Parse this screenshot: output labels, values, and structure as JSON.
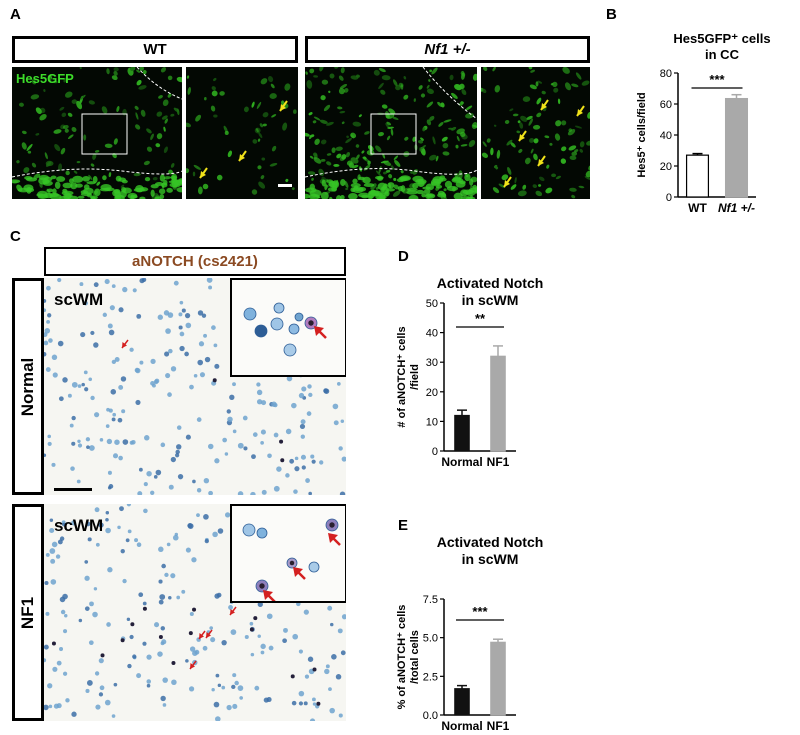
{
  "panels": {
    "a": {
      "letter": "A",
      "label_wt": "WT",
      "label_nf1": "Nf1 +/-",
      "stain": "Hes5GFP"
    },
    "c": {
      "letter": "C",
      "stain_title": "aNOTCH (cs2421)",
      "row_normal": "Normal",
      "row_nf1": "NF1",
      "region": "scWM"
    }
  },
  "chart_data": [
    {
      "type": "bar",
      "panel": "B",
      "title": [
        "Hes5GFP⁺ cells",
        "in CC"
      ],
      "ylabel": "Hes5⁺ cells/field",
      "categories": [
        "WT",
        "Nf1 +/-"
      ],
      "values": [
        27,
        63.5
      ],
      "errors": [
        1,
        2.5
      ],
      "ylim": [
        0,
        80
      ],
      "yticks": [
        "0",
        "20",
        "40",
        "60",
        "80"
      ],
      "significance": "***",
      "colors": [
        "#ffffff",
        "#a9a9a9"
      ]
    },
    {
      "type": "bar",
      "panel": "D",
      "title": [
        "Activated Notch",
        "in scWM"
      ],
      "ylabel": [
        "# of aNOTCH⁺ cells",
        "/field"
      ],
      "categories": [
        "Normal",
        "NF1"
      ],
      "values": [
        12,
        32
      ],
      "errors": [
        1.8,
        3.5
      ],
      "ylim": [
        0,
        50
      ],
      "yticks": [
        "0",
        "10",
        "20",
        "30",
        "40",
        "50"
      ],
      "significance": "**",
      "colors": [
        "#111111",
        "#a9a9a9"
      ]
    },
    {
      "type": "bar",
      "panel": "E",
      "title": [
        "Activated Notch",
        "in scWM"
      ],
      "ylabel": [
        "% of aNOTCH⁺ cells",
        "/total cells"
      ],
      "categories": [
        "Normal",
        "NF1"
      ],
      "values": [
        1.7,
        4.7
      ],
      "errors": [
        0.2,
        0.2
      ],
      "ylim": [
        0,
        7.5
      ],
      "yticks": [
        "0.0",
        "2.5",
        "5.0",
        "7.5"
      ],
      "significance": "***",
      "colors": [
        "#111111",
        "#a9a9a9"
      ]
    }
  ]
}
